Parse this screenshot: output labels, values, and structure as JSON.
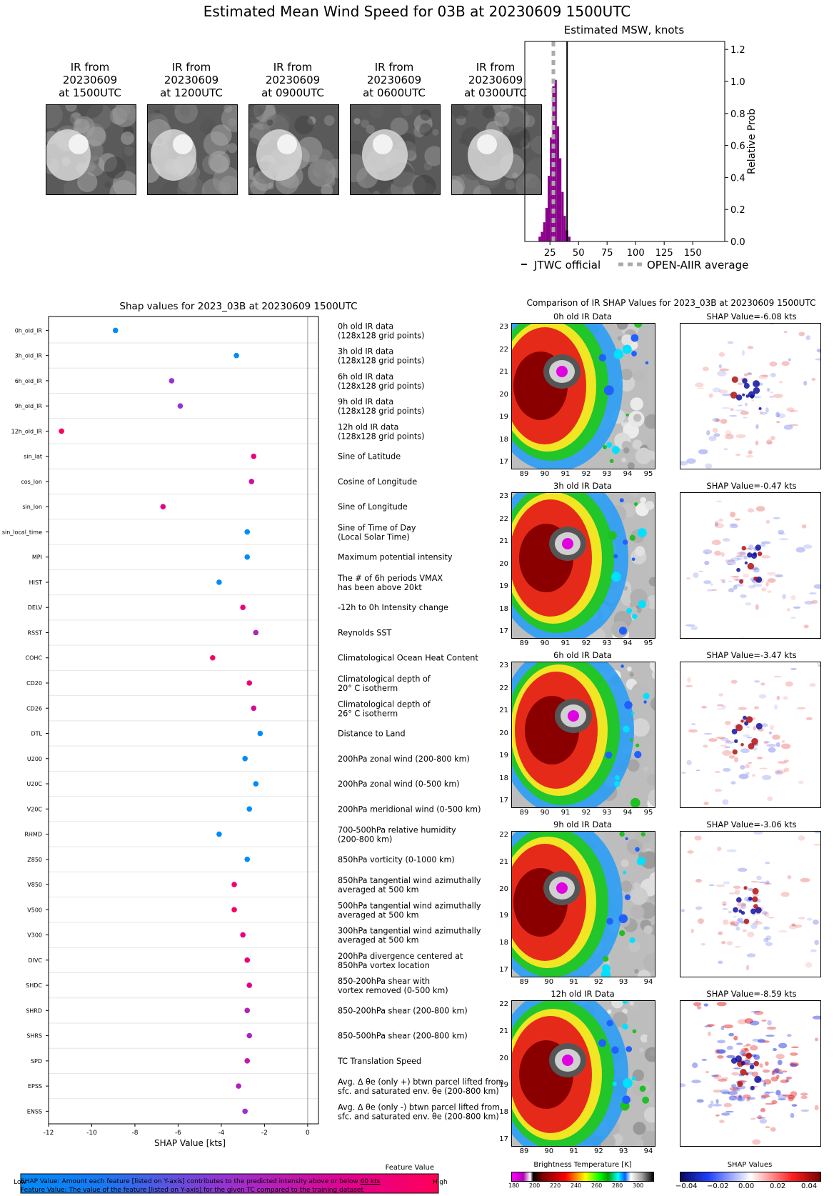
{
  "title": "Estimated Mean Wind Speed for 03B at 20230609 1500UTC",
  "ir_thumbnails": [
    {
      "line1": "IR from",
      "line2": "20230609",
      "line3": "at 1500UTC"
    },
    {
      "line1": "IR from",
      "line2": "20230609",
      "line3": "at 1200UTC"
    },
    {
      "line1": "IR from",
      "line2": "20230609",
      "line3": "at 0900UTC"
    },
    {
      "line1": "IR from",
      "line2": "20230609",
      "line3": "at 0600UTC"
    },
    {
      "line1": "IR from",
      "line2": "20230609",
      "line3": "at 0300UTC"
    }
  ],
  "chart_data": [
    {
      "type": "bar",
      "title": "Estimated MSW, knots",
      "ylabel": "Relative Prob",
      "xlim": [
        3,
        178
      ],
      "ylim": [
        0,
        1.25
      ],
      "xticks": [
        25,
        50,
        75,
        100,
        125,
        150
      ],
      "yticks": [
        "0.0",
        "0.2",
        "0.4",
        "0.6",
        "0.8",
        "1.0",
        "1.2"
      ],
      "bins_x": [
        16,
        18,
        20,
        22,
        24,
        26,
        28,
        30,
        32,
        34,
        36,
        38,
        40,
        42
      ],
      "bins_y": [
        0.03,
        0.06,
        0.12,
        0.21,
        0.41,
        0.65,
        0.97,
        1.01,
        0.72,
        0.52,
        0.31,
        0.16,
        0.07,
        0.03
      ],
      "bar_color": "#8b008b",
      "jtwc_official": 40,
      "openaiir_average": 28,
      "legend": [
        "JTWC official",
        "OPEN-AIIR average"
      ],
      "legend_position": "bottom"
    },
    {
      "type": "scatter",
      "title": "Shap values for 2023_03B at 20230609 1500UTC",
      "xlabel": "SHAP Value [kts]",
      "xlim": [
        -12,
        0.5
      ],
      "xticks": [
        "-12",
        "-10",
        "-8",
        "-6",
        "-4",
        "-2",
        "0"
      ],
      "colorbar_title": "Feature Value",
      "colorbar_low": "Low",
      "colorbar_high": "High",
      "features": [
        {
          "short": "0h_old_IR",
          "desc": [
            "0h old IR data",
            "(128x128 grid points)"
          ],
          "shap": -8.9,
          "fv": 0.0
        },
        {
          "short": "3h_old_IR",
          "desc": [
            "3h old IR data",
            "(128x128 grid points)"
          ],
          "shap": -3.3,
          "fv": 0.0
        },
        {
          "short": "6h_old_IR",
          "desc": [
            "6h old IR data",
            "(128x128 grid points)"
          ],
          "shap": -6.3,
          "fv": 0.5
        },
        {
          "short": "9h_old_IR",
          "desc": [
            "9h old IR data",
            "(128x128 grid points)"
          ],
          "shap": -5.9,
          "fv": 0.5
        },
        {
          "short": "12h_old_IR",
          "desc": [
            "12h old IR data",
            "(128x128 grid points)"
          ],
          "shap": -11.4,
          "fv": 1.0
        },
        {
          "short": "sin_lat",
          "desc": [
            "Sine of Latitude"
          ],
          "shap": -2.5,
          "fv": 0.85
        },
        {
          "short": "cos_lon",
          "desc": [
            "Cosine of Longitude"
          ],
          "shap": -2.6,
          "fv": 0.7
        },
        {
          "short": "sin_lon",
          "desc": [
            "Sine of Longitude"
          ],
          "shap": -6.7,
          "fv": 0.8
        },
        {
          "short": "sin_local_time",
          "desc": [
            "Sine of Time of Day",
            "(Local Solar Time)"
          ],
          "shap": -2.8,
          "fv": 0.0
        },
        {
          "short": "MPI",
          "desc": [
            "Maximum potential intensity"
          ],
          "shap": -2.8,
          "fv": 0.0
        },
        {
          "short": "HIST",
          "desc": [
            "The # of 6h periods VMAX",
            "has been above 20kt"
          ],
          "shap": -4.1,
          "fv": 0.0
        },
        {
          "short": "DELV",
          "desc": [
            "-12h to 0h Intensity change"
          ],
          "shap": -3.0,
          "fv": 0.85
        },
        {
          "short": "RSST",
          "desc": [
            "Reynolds SST"
          ],
          "shap": -2.4,
          "fv": 0.6
        },
        {
          "short": "COHC",
          "desc": [
            "Climatological Ocean Heat Content"
          ],
          "shap": -4.4,
          "fv": 0.95
        },
        {
          "short": "CD20",
          "desc": [
            "Climatological depth of",
            "20° C isotherm"
          ],
          "shap": -2.7,
          "fv": 0.85
        },
        {
          "short": "CD26",
          "desc": [
            "Climatological depth of",
            "26° C isotherm"
          ],
          "shap": -2.5,
          "fv": 0.75
        },
        {
          "short": "DTL",
          "desc": [
            "Distance to Land"
          ],
          "shap": -2.2,
          "fv": 0.0
        },
        {
          "short": "U200",
          "desc": [
            "200hPa zonal wind (200-800 km)"
          ],
          "shap": -2.9,
          "fv": 0.0
        },
        {
          "short": "U20C",
          "desc": [
            "200hPa zonal wind (0-500 km)"
          ],
          "shap": -2.4,
          "fv": 0.0
        },
        {
          "short": "V20C",
          "desc": [
            "200hPa meridional wind (0-500 km)"
          ],
          "shap": -2.7,
          "fv": 0.0
        },
        {
          "short": "RHMD",
          "desc": [
            "700-500hPa relative humidity",
            "(200-800 km)"
          ],
          "shap": -4.1,
          "fv": 0.0
        },
        {
          "short": "Z850",
          "desc": [
            "850hPa vorticity (0-1000 km)"
          ],
          "shap": -2.8,
          "fv": 0.0
        },
        {
          "short": "V850",
          "desc": [
            "850hPa tangential wind azimuthally",
            "averaged at 500 km"
          ],
          "shap": -3.4,
          "fv": 0.9
        },
        {
          "short": "V500",
          "desc": [
            "500hPa tangential wind azimuthally",
            "averaged at 500 km"
          ],
          "shap": -3.4,
          "fv": 0.95
        },
        {
          "short": "V300",
          "desc": [
            "300hPa tangential wind azimuthally",
            "averaged at 500 km"
          ],
          "shap": -3.0,
          "fv": 0.8
        },
        {
          "short": "DIVC",
          "desc": [
            "200hPa divergence centered at",
            "850hPa vortex location"
          ],
          "shap": -2.8,
          "fv": 0.85
        },
        {
          "short": "SHDC",
          "desc": [
            "850-200hPa shear with",
            "vortex removed (0-500 km)"
          ],
          "shap": -2.7,
          "fv": 0.8
        },
        {
          "short": "SHRD",
          "desc": [
            "850-200hPa shear (200-800 km)"
          ],
          "shap": -2.8,
          "fv": 0.6
        },
        {
          "short": "SHRS",
          "desc": [
            "850-500hPa shear (200-800 km)"
          ],
          "shap": -2.7,
          "fv": 0.55
        },
        {
          "short": "SPD",
          "desc": [
            "TC Translation Speed"
          ],
          "shap": -2.8,
          "fv": 0.65
        },
        {
          "short": "EPSS",
          "desc": [
            "Avg. Δ θe (only +) btwn parcel lifted from",
            "sfc. and saturated env. θe (200-800 km)"
          ],
          "shap": -3.2,
          "fv": 0.6
        },
        {
          "short": "ENSS",
          "desc": [
            "Avg. Δ θe (only -) btwn parcel lifted from",
            "sfc. and saturated env. θe (200-800 km)"
          ],
          "shap": -2.9,
          "fv": 0.5
        }
      ]
    },
    {
      "type": "heatmap",
      "title": "Comparison of IR SHAP Values for 2023_03B at 20230609 1500UTC",
      "panels": [
        {
          "ir_title": "0h old IR Data",
          "shap_title": "SHAP Value=-6.08 kts",
          "yticks": [
            "23",
            "22",
            "21",
            "20",
            "19",
            "18",
            "17"
          ],
          "xticks": [
            "89",
            "90",
            "91",
            "92",
            "93",
            "94",
            "95"
          ]
        },
        {
          "ir_title": "3h old IR Data",
          "shap_title": "SHAP Value=-0.47 kts",
          "yticks": [
            "23",
            "22",
            "21",
            "20",
            "19",
            "18",
            "17"
          ],
          "xticks": [
            "89",
            "90",
            "91",
            "92",
            "93",
            "94",
            "95"
          ]
        },
        {
          "ir_title": "6h old IR Data",
          "shap_title": "SHAP Value=-3.47 kts",
          "yticks": [
            "23",
            "22",
            "21",
            "20",
            "19",
            "18",
            "17"
          ],
          "xticks": [
            "89",
            "90",
            "91",
            "92",
            "93",
            "94",
            "95"
          ]
        },
        {
          "ir_title": "9h old IR Data",
          "shap_title": "SHAP Value=-3.06 kts",
          "yticks": [
            "22",
            "21",
            "20",
            "19",
            "18",
            "17"
          ],
          "xticks": [
            "89",
            "90",
            "91",
            "92",
            "93",
            "94"
          ]
        },
        {
          "ir_title": "12h old IR Data",
          "shap_title": "SHAP Value=-8.59 kts",
          "yticks": [
            "22",
            "21",
            "20",
            "19",
            "18",
            "17"
          ],
          "xticks": [
            "89",
            "90",
            "91",
            "92",
            "93",
            "94"
          ]
        }
      ],
      "bt_colorbar": {
        "label": "Brightness Temperature [K]",
        "ticks": [
          "180",
          "200",
          "220",
          "240",
          "260",
          "280",
          "300"
        ]
      },
      "shap_colorbar": {
        "label": "SHAP Values",
        "ticks": [
          "−0.04",
          "−0.02",
          "0.00",
          "0.02",
          "0.04"
        ]
      }
    }
  ],
  "footnotes": {
    "line1_prefix": "SHAP Value: Amount each feature [listed on Y-axis] contributes to the predicted intensity above or below ",
    "line1_link": "60 kts",
    "line2": "Feature Value: The value of the feature [listed on Y-axis] for the given TC compared to the training dataset"
  }
}
